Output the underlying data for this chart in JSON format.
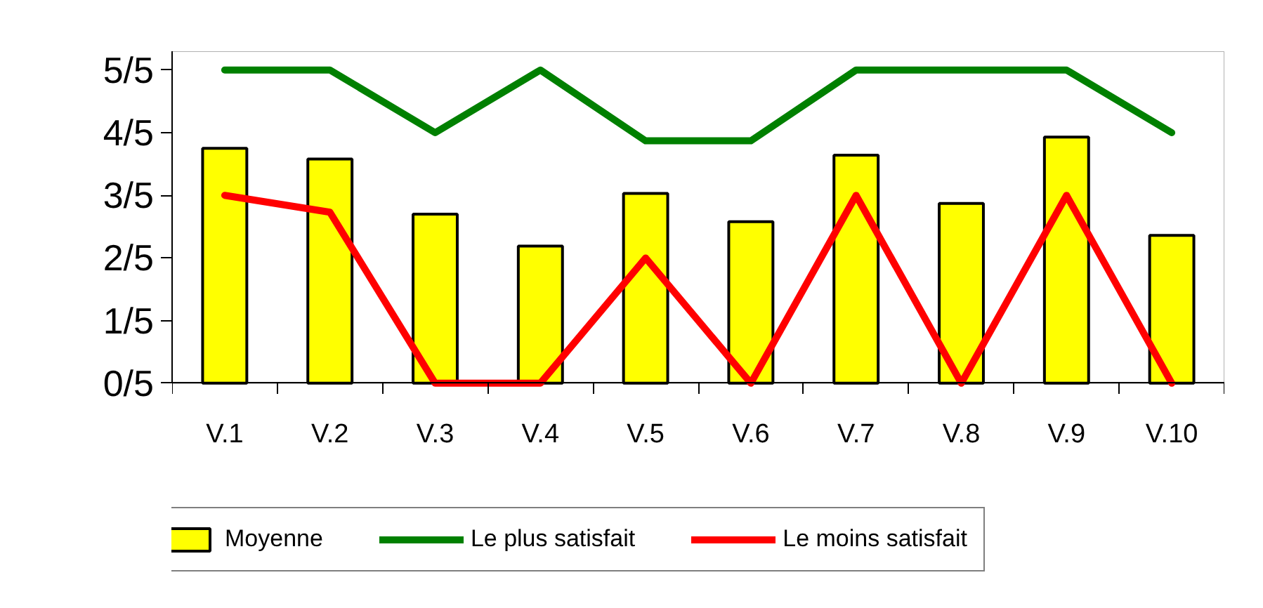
{
  "chart_data": {
    "type": "bar",
    "categories": [
      "V.1",
      "V.2",
      "V.3",
      "V.4",
      "V.5",
      "V.6",
      "V.7",
      "V.8",
      "V.9",
      "V.10"
    ],
    "series": [
      {
        "name": "Moyenne",
        "color": "#ffff00",
        "values": [
          0.75,
          0.716,
          0.54,
          0.438,
          0.606,
          0.516,
          0.728,
          0.574,
          0.786,
          0.472
        ]
      },
      {
        "name": "Le plus satisfait",
        "type": "line",
        "color": "#008000",
        "values": [
          1,
          1,
          0.8,
          1,
          0.774,
          0.774,
          1,
          1,
          1,
          0.8
        ]
      },
      {
        "name": "Le moins satisfait",
        "type": "line",
        "color": "#ff0000",
        "values": [
          0.6,
          0.546,
          0,
          0,
          0.4,
          0,
          0.6,
          0,
          0.6,
          0
        ]
      }
    ],
    "ylim": [
      0,
      1.06
    ],
    "yticks": [
      {
        "value": 0,
        "label": "0/5"
      },
      {
        "value": 0.2,
        "label": "1/5"
      },
      {
        "value": 0.4,
        "label": "2/5"
      },
      {
        "value": 0.6,
        "label": "3/5"
      },
      {
        "value": 0.8,
        "label": "4/5"
      },
      {
        "value": 1,
        "label": "5/5"
      }
    ],
    "legend": "bottom"
  }
}
